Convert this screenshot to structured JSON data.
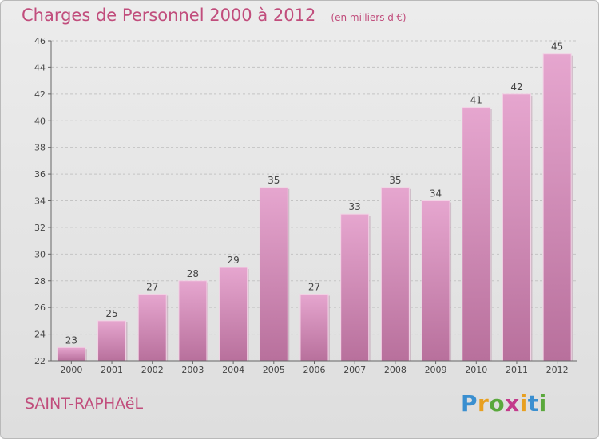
{
  "chart_data": {
    "type": "bar",
    "title": "Charges de Personnel 2000 à 2012",
    "subtitle": "(en milliers d'€)",
    "categories": [
      "2000",
      "2001",
      "2002",
      "2003",
      "2004",
      "2005",
      "2006",
      "2007",
      "2008",
      "2009",
      "2010",
      "2011",
      "2012"
    ],
    "values": [
      23,
      25,
      27,
      28,
      29,
      35,
      27,
      33,
      35,
      34,
      41,
      42,
      45
    ],
    "ylim": [
      22,
      46
    ],
    "yticks": [
      22,
      24,
      26,
      28,
      30,
      32,
      34,
      36,
      38,
      40,
      42,
      44,
      46
    ],
    "grid": true,
    "bar_color": "#d98fba"
  },
  "footer": {
    "commune": "SAINT-RAPHAëL"
  },
  "logo": {
    "letters": [
      "P",
      "r",
      "o",
      "x",
      "i",
      "t",
      "i"
    ],
    "colors": [
      "#3a8fd0",
      "#e8a020",
      "#5aa83c",
      "#c33a8b",
      "#e8a020",
      "#3a8fd0",
      "#5aa83c"
    ]
  }
}
